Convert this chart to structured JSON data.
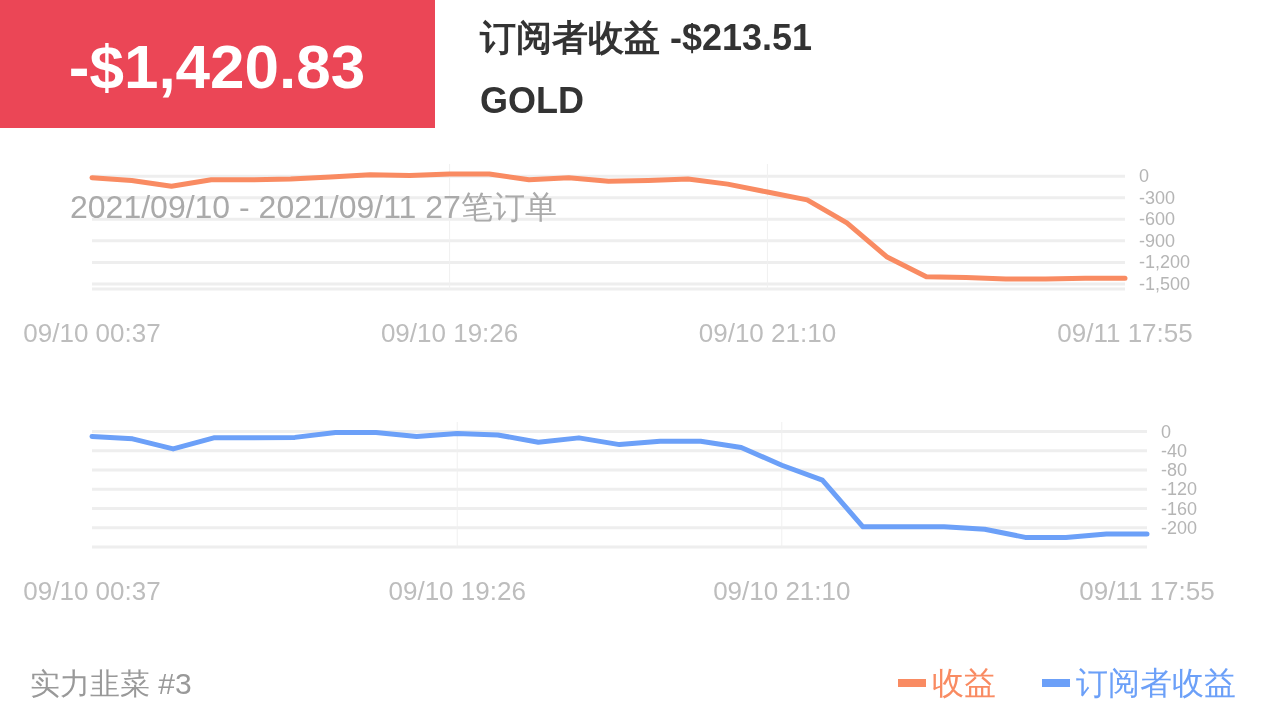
{
  "chart_data": [
    {
      "type": "line",
      "title": "GOLD",
      "subtitle": "订阅者收益 -$213.51",
      "annotations": [
        "-$1,420.83",
        "2021/09/10 - 2021/09/11  27笔订单"
      ],
      "categories": [
        "09/10 00:37",
        null,
        null,
        null,
        null,
        null,
        null,
        null,
        null,
        "09/10 19:26",
        null,
        null,
        null,
        null,
        null,
        null,
        null,
        "09/10 21:10",
        null,
        null,
        null,
        null,
        null,
        null,
        null,
        null,
        "09/11 17:55"
      ],
      "series": [
        {
          "name": "收益",
          "color": "#f98b62",
          "values": [
            -20,
            -60,
            -140,
            -50,
            -50,
            -40,
            -10,
            20,
            10,
            30,
            30,
            -50,
            -20,
            -70,
            -60,
            -40,
            -110,
            -220,
            -330,
            -650,
            -1120,
            -1400,
            -1410,
            -1430,
            -1430,
            -1420,
            -1420
          ]
        }
      ],
      "ylim": [
        -1570,
        170
      ],
      "yticks": [
        0,
        -300,
        -600,
        -900,
        {
          "value": -1200,
          "label": "-1,200"
        },
        {
          "value": -1500,
          "label": "-1,500"
        }
      ],
      "grid": true,
      "legend": "bottom right",
      "marker": "none",
      "line_style": "solid"
    },
    {
      "type": "line",
      "annotations": [
        "实力韭菜 #3"
      ],
      "categories": [
        "09/10 00:37",
        null,
        null,
        null,
        null,
        null,
        null,
        null,
        null,
        "09/10 19:26",
        null,
        null,
        null,
        null,
        null,
        null,
        null,
        "09/10 21:10",
        null,
        null,
        null,
        null,
        null,
        null,
        null,
        null,
        "09/11 17:55"
      ],
      "series": [
        {
          "name": "订阅者收益",
          "color": "#6ca0f8",
          "values": [
            -10,
            -15,
            -36,
            -13,
            -13,
            -12,
            -2,
            -2,
            -10,
            -4,
            -7,
            -22,
            -13,
            -27,
            -20,
            -20,
            -33,
            -70,
            -101,
            -198,
            -198,
            -198,
            -203,
            -220,
            -220,
            -213,
            -213
          ]
        }
      ],
      "ylim": [
        -240,
        20
      ],
      "yticks": [
        0,
        -40,
        -80,
        -120,
        -160,
        -200
      ],
      "grid": true,
      "legend": "bottom right",
      "marker": "none",
      "line_style": "solid"
    }
  ]
}
